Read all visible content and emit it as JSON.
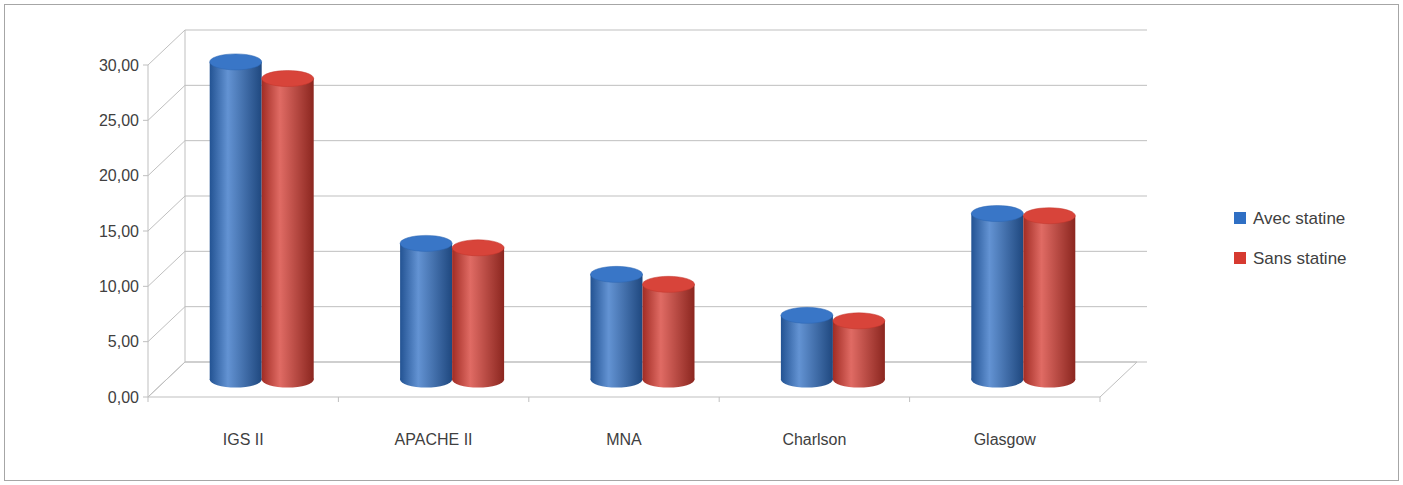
{
  "chart_data": {
    "type": "bar",
    "categories": [
      "IGS II",
      "APACHE II",
      "MNA",
      "Charlson",
      "Glasgow"
    ],
    "series": [
      {
        "name": "Avec statine",
        "color": "#2f6fc4",
        "values": [
          28.7,
          12.3,
          9.5,
          5.8,
          15.0
        ]
      },
      {
        "name": "Sans statine",
        "color": "#d63a30",
        "values": [
          27.2,
          11.9,
          8.6,
          5.3,
          14.8
        ]
      }
    ],
    "ylim": [
      0,
      30
    ],
    "yticks": [
      {
        "value": 0,
        "label": "0,00"
      },
      {
        "value": 5,
        "label": "5,00"
      },
      {
        "value": 10,
        "label": "10,00"
      },
      {
        "value": 15,
        "label": "15,00"
      },
      {
        "value": 20,
        "label": "20,00"
      },
      {
        "value": 25,
        "label": "25,00"
      },
      {
        "value": 30,
        "label": "30,00"
      }
    ],
    "grid": true,
    "legend": "right"
  }
}
